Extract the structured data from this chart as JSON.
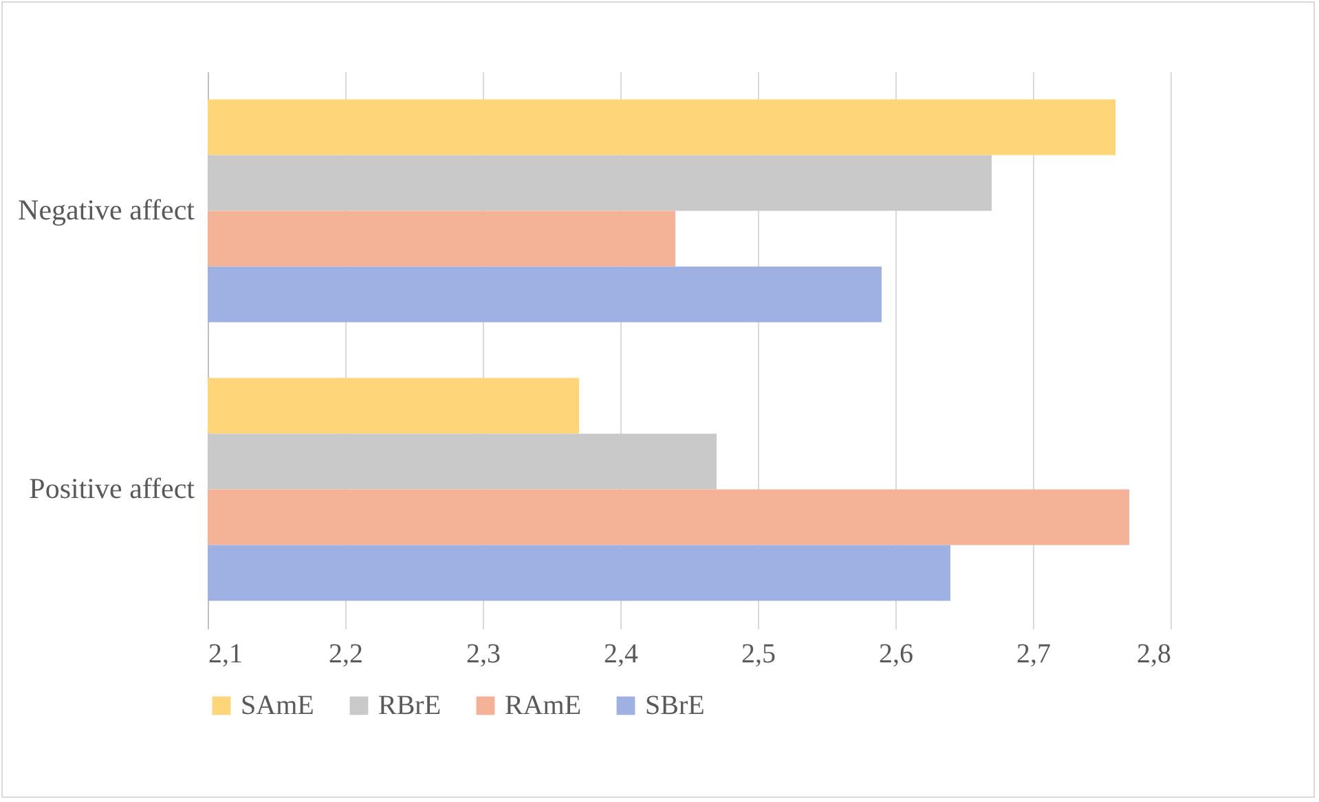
{
  "chart_data": {
    "type": "bar",
    "orientation": "horizontal",
    "categories": [
      "Negative affect",
      "Positive affect"
    ],
    "series": [
      {
        "name": "SAmE",
        "color": "#ffd57a",
        "values": [
          2.76,
          2.37
        ]
      },
      {
        "name": "RBrE",
        "color": "#c9c9c9",
        "values": [
          2.67,
          2.47
        ]
      },
      {
        "name": "RAmE",
        "color": "#f4b397",
        "values": [
          2.44,
          2.77
        ]
      },
      {
        "name": "SBrE",
        "color": "#9fb1e2",
        "values": [
          2.59,
          2.64
        ]
      }
    ],
    "xlim": [
      2.1,
      2.8
    ],
    "xticks": [
      {
        "value": 2.1,
        "label": "2,1"
      },
      {
        "value": 2.2,
        "label": "2,2"
      },
      {
        "value": 2.3,
        "label": "2,3"
      },
      {
        "value": 2.4,
        "label": "2,4"
      },
      {
        "value": 2.5,
        "label": "2,5"
      },
      {
        "value": 2.6,
        "label": "2,6"
      },
      {
        "value": 2.7,
        "label": "2,7"
      },
      {
        "value": 2.8,
        "label": "2,8"
      }
    ],
    "grid": "x",
    "legend": "bottom"
  }
}
